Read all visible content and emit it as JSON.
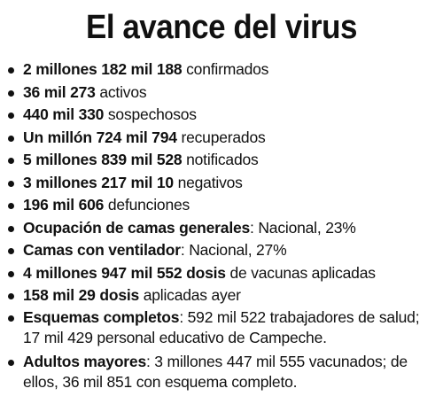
{
  "title": "El avance del virus",
  "items": [
    {
      "bold": "2 millones 182 mil 188",
      "rest": " confirmados"
    },
    {
      "bold": "36 mil 273",
      "rest": " activos"
    },
    {
      "bold": "440 mil 330",
      "rest": " sospechosos"
    },
    {
      "bold": "Un millón 724 mil 794",
      "rest": " recuperados"
    },
    {
      "bold": "5 millones 839 mil 528",
      "rest": " notificados"
    },
    {
      "bold": "3 millones 217 mil 10",
      "rest": " negativos"
    },
    {
      "bold": "196 mil 606",
      "rest": " defunciones"
    },
    {
      "bold": "Ocupación de camas generales",
      "rest": ": Nacional, 23%"
    },
    {
      "bold": "Camas con ventilador",
      "rest": ": Nacional, 27%"
    },
    {
      "bold": "4 millones 947 mil 552 dosis",
      "rest": " de vacunas aplicadas"
    },
    {
      "bold": "158 mil 29 dosis",
      "rest": " aplicadas ayer"
    },
    {
      "bold": "Esquemas completos",
      "rest": ": 592 mil 522 trabajadores de salud; 17 mil 429 personal educativo de Campeche."
    },
    {
      "bold": "Adultos mayores",
      "rest": ": 3 millones 447 mil 555 vacunados; de ellos, 36 mil 851 con esquema completo."
    }
  ]
}
